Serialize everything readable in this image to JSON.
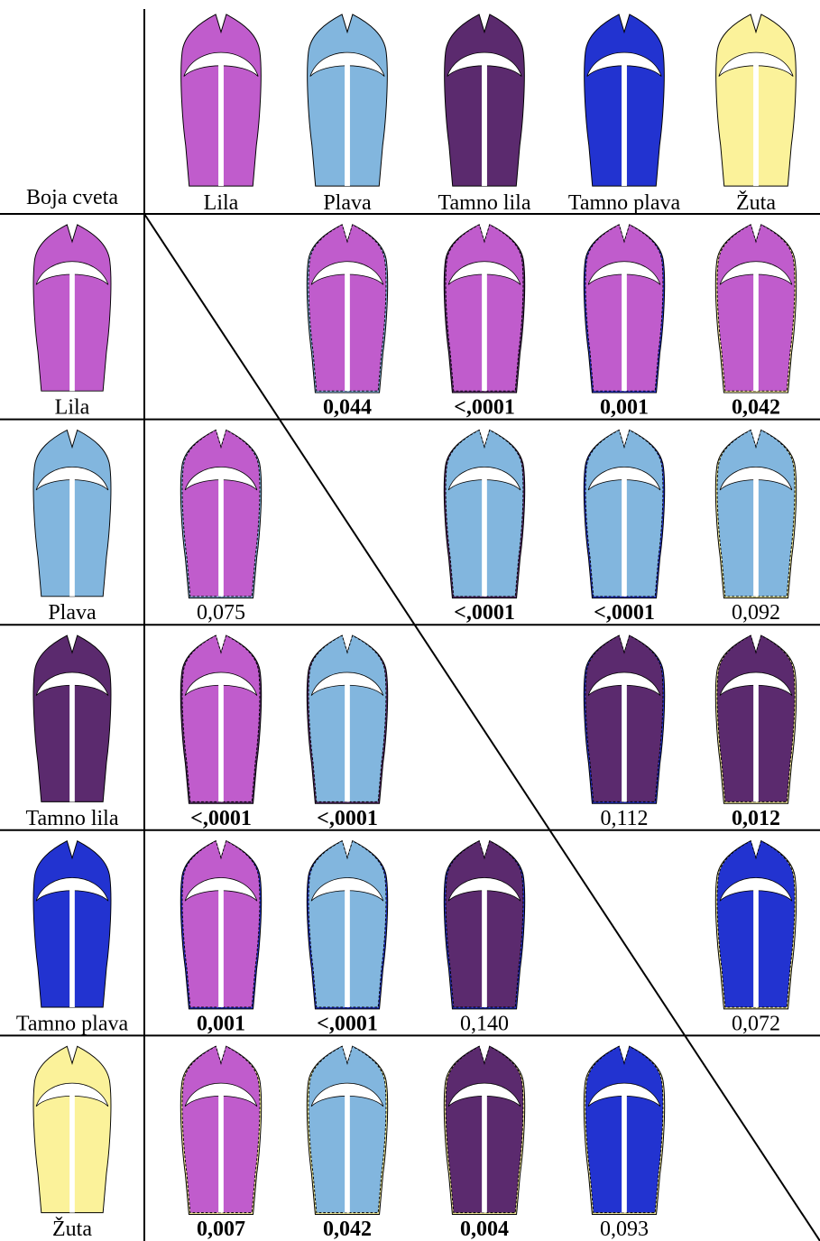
{
  "corner": "Boja cveta",
  "columns": [
    {
      "name": "Lila",
      "color": "#c05ccc"
    },
    {
      "name": "Plava",
      "color": "#82b6de"
    },
    {
      "name": "Tamno lila",
      "color": "#5b2a6e"
    },
    {
      "name": "Tamno plava",
      "color": "#2233d0"
    },
    {
      "name": "Žuta",
      "color": "#fbf29a"
    }
  ],
  "rows": [
    {
      "name": "Lila",
      "cells": [
        null,
        {
          "text": "0,044",
          "bold": true
        },
        {
          "text": "<,0001",
          "bold": true
        },
        {
          "text": "0,001",
          "bold": true
        },
        {
          "text": "0,042",
          "bold": true
        }
      ]
    },
    {
      "name": "Plava",
      "cells": [
        {
          "text": "0,075",
          "bold": false
        },
        null,
        {
          "text": "<,0001",
          "bold": true
        },
        {
          "text": "<,0001",
          "bold": true
        },
        {
          "text": "0,092",
          "bold": false
        }
      ]
    },
    {
      "name": "Tamno lila",
      "cells": [
        {
          "text": "<,0001",
          "bold": true
        },
        {
          "text": "<,0001",
          "bold": true
        },
        null,
        {
          "text": "0,112",
          "bold": false
        },
        {
          "text": "0,012",
          "bold": true
        }
      ]
    },
    {
      "name": "Tamno plava",
      "cells": [
        {
          "text": "0,001",
          "bold": true
        },
        {
          "text": "<,0001",
          "bold": true
        },
        {
          "text": "0,140",
          "bold": false
        },
        null,
        {
          "text": "0,072",
          "bold": false
        }
      ]
    },
    {
      "name": "Žuta",
      "cells": [
        {
          "text": "0,007",
          "bold": true
        },
        {
          "text": "0,042",
          "bold": true
        },
        {
          "text": "0,004",
          "bold": true
        },
        {
          "text": "0,093",
          "bold": false
        },
        null
      ]
    }
  ]
}
